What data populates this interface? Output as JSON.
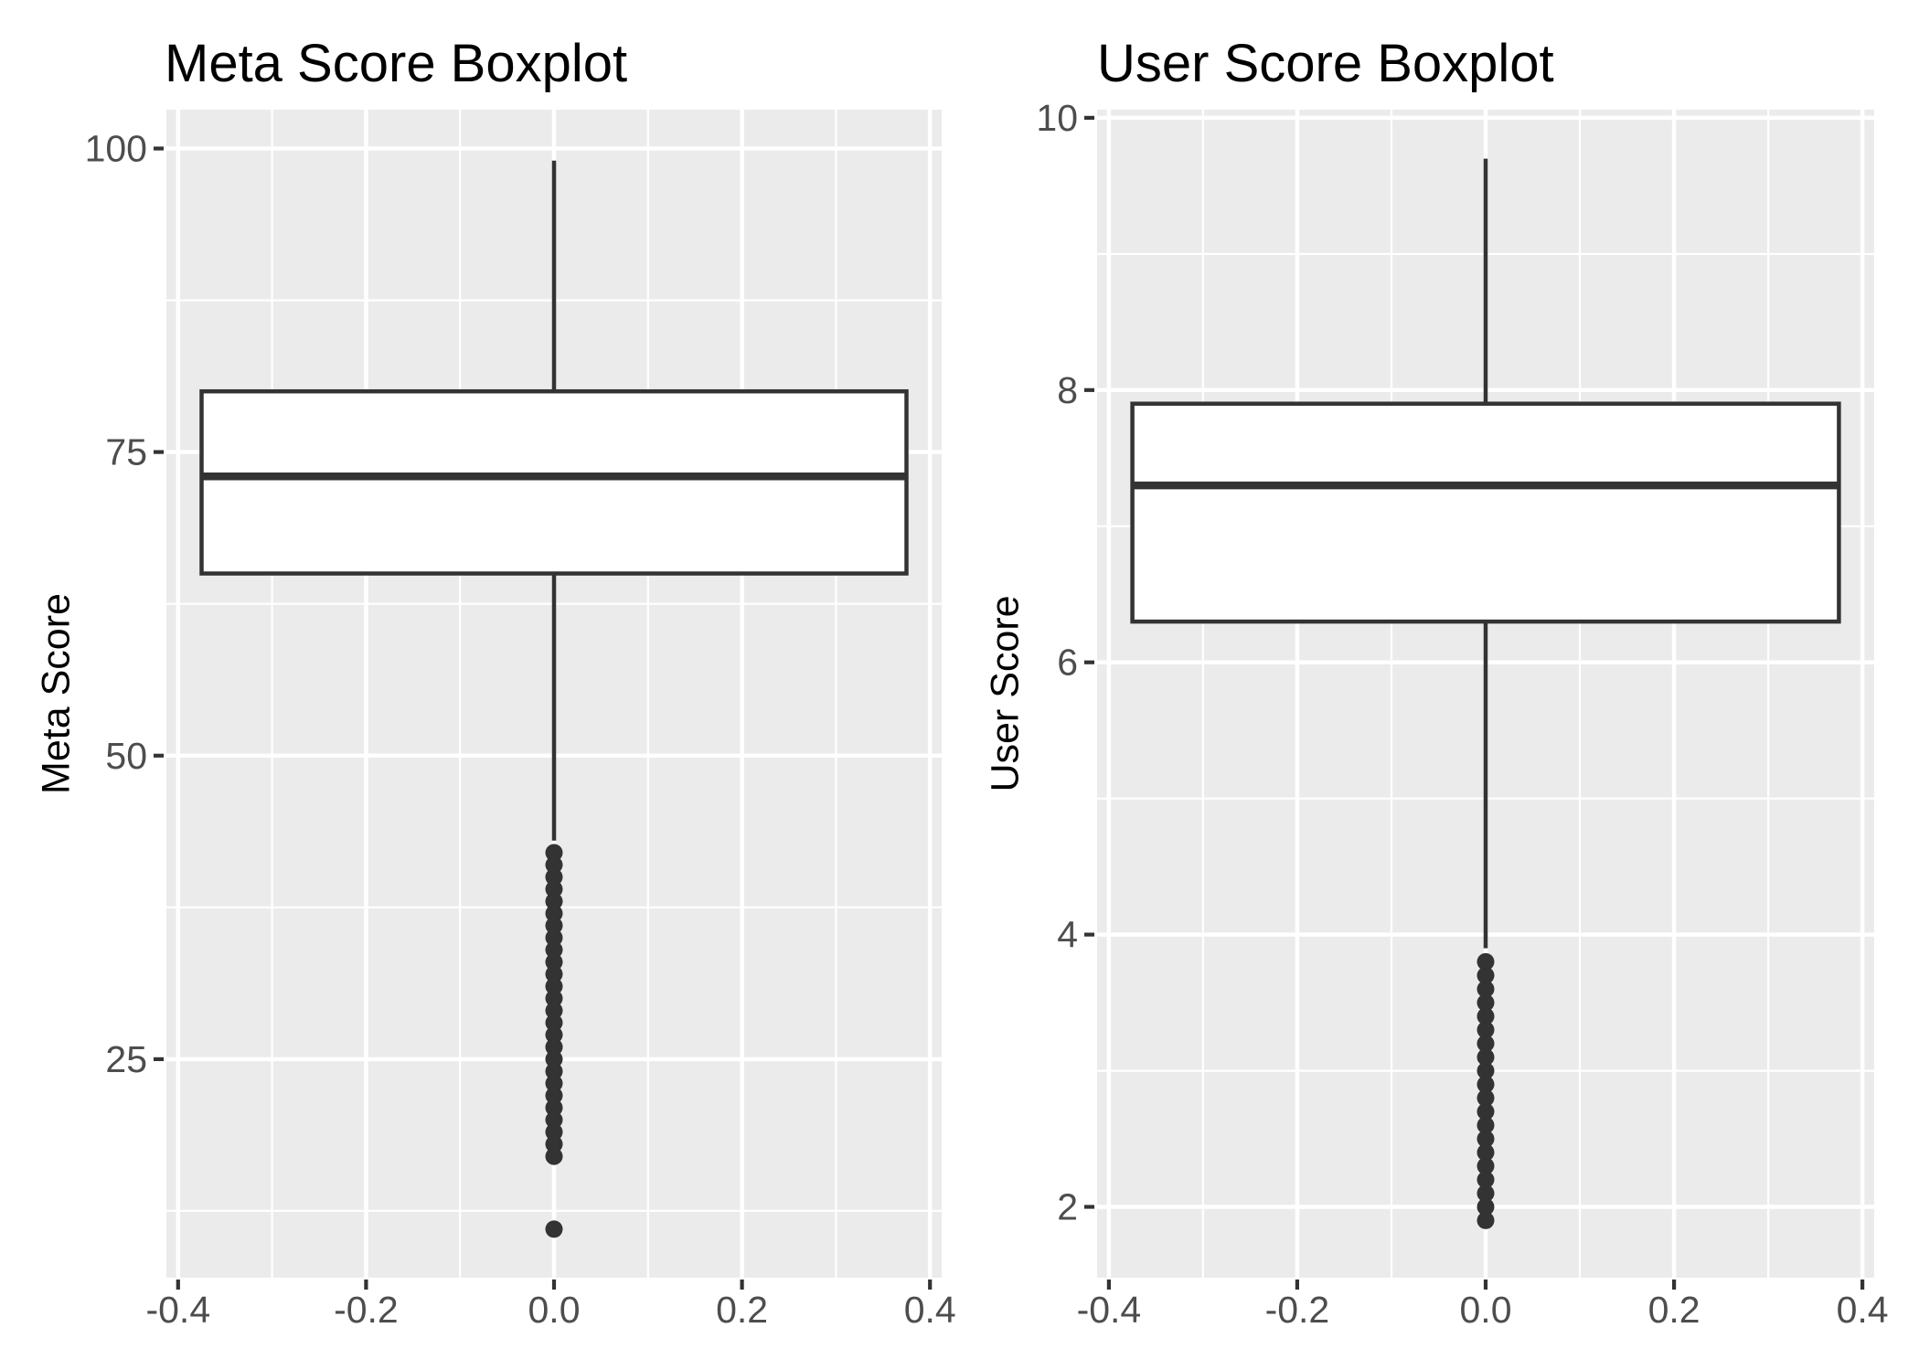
{
  "figure": {
    "background": "#FFFFFF",
    "colors": {
      "panel_bg": "#EBEBEB",
      "grid": "#FFFFFF",
      "box_stroke": "#333333",
      "box_fill": "#FFFFFF",
      "outlier": "#333333",
      "tick_mark": "#333333",
      "tick_label": "#4D4D4D",
      "title": "#000000",
      "axis_title": "#000000"
    }
  },
  "chart_data": [
    {
      "type": "boxplot",
      "title": "Meta Score Boxplot",
      "xlabel": "",
      "ylabel": "Meta Score",
      "legend_position": "none",
      "grid": "white major and minor gridlines on grey panel",
      "x_tick_labels": [
        "-0.4",
        "-0.2",
        "0.0",
        "0.2",
        "0.4"
      ],
      "x_tick_values": [
        -0.4,
        -0.2,
        0.0,
        0.2,
        0.4
      ],
      "x_minor_values": [
        -0.3,
        -0.1,
        0.1,
        0.3
      ],
      "xlim": [
        -0.4125,
        0.4125
      ],
      "y_tick_labels": [
        "25",
        "50",
        "75",
        "100"
      ],
      "y_tick_values": [
        25,
        50,
        75,
        100
      ],
      "y_minor_values": [
        12.5,
        37.5,
        62.5,
        87.5
      ],
      "ylim": [
        7,
        103.2
      ],
      "box": {
        "x_center": 0,
        "box_width": 0.75,
        "q1": 65,
        "median": 73,
        "q3": 80,
        "whisker_low": 43,
        "whisker_high": 99
      },
      "outliers": [
        42,
        41,
        40,
        39,
        38,
        37,
        36,
        35,
        34,
        33,
        32,
        31,
        30,
        29,
        28,
        27,
        26,
        25,
        24,
        23,
        22,
        21,
        20,
        19,
        18,
        17,
        11
      ]
    },
    {
      "type": "boxplot",
      "title": "User Score Boxplot",
      "xlabel": "",
      "ylabel": "User Score",
      "legend_position": "none",
      "grid": "white major and minor gridlines on grey panel",
      "x_tick_labels": [
        "-0.4",
        "-0.2",
        "0.0",
        "0.2",
        "0.4"
      ],
      "x_tick_values": [
        -0.4,
        -0.2,
        0.0,
        0.2,
        0.4
      ],
      "x_minor_values": [
        -0.3,
        -0.1,
        0.1,
        0.3
      ],
      "xlim": [
        -0.4125,
        0.4125
      ],
      "y_tick_labels": [
        "2",
        "4",
        "6",
        "8",
        "10"
      ],
      "y_tick_values": [
        2,
        4,
        6,
        8,
        10
      ],
      "y_minor_values": [
        3,
        5,
        7,
        9
      ],
      "ylim": [
        1.48,
        10.06
      ],
      "box": {
        "x_center": 0,
        "box_width": 0.75,
        "q1": 6.3,
        "median": 7.3,
        "q3": 7.9,
        "whisker_low": 3.9,
        "whisker_high": 9.7
      },
      "outliers": [
        3.8,
        3.7,
        3.6,
        3.5,
        3.4,
        3.3,
        3.2,
        3.1,
        3.0,
        2.9,
        2.8,
        2.7,
        2.6,
        2.5,
        2.4,
        2.3,
        2.2,
        2.1,
        2.0,
        1.9
      ]
    }
  ]
}
